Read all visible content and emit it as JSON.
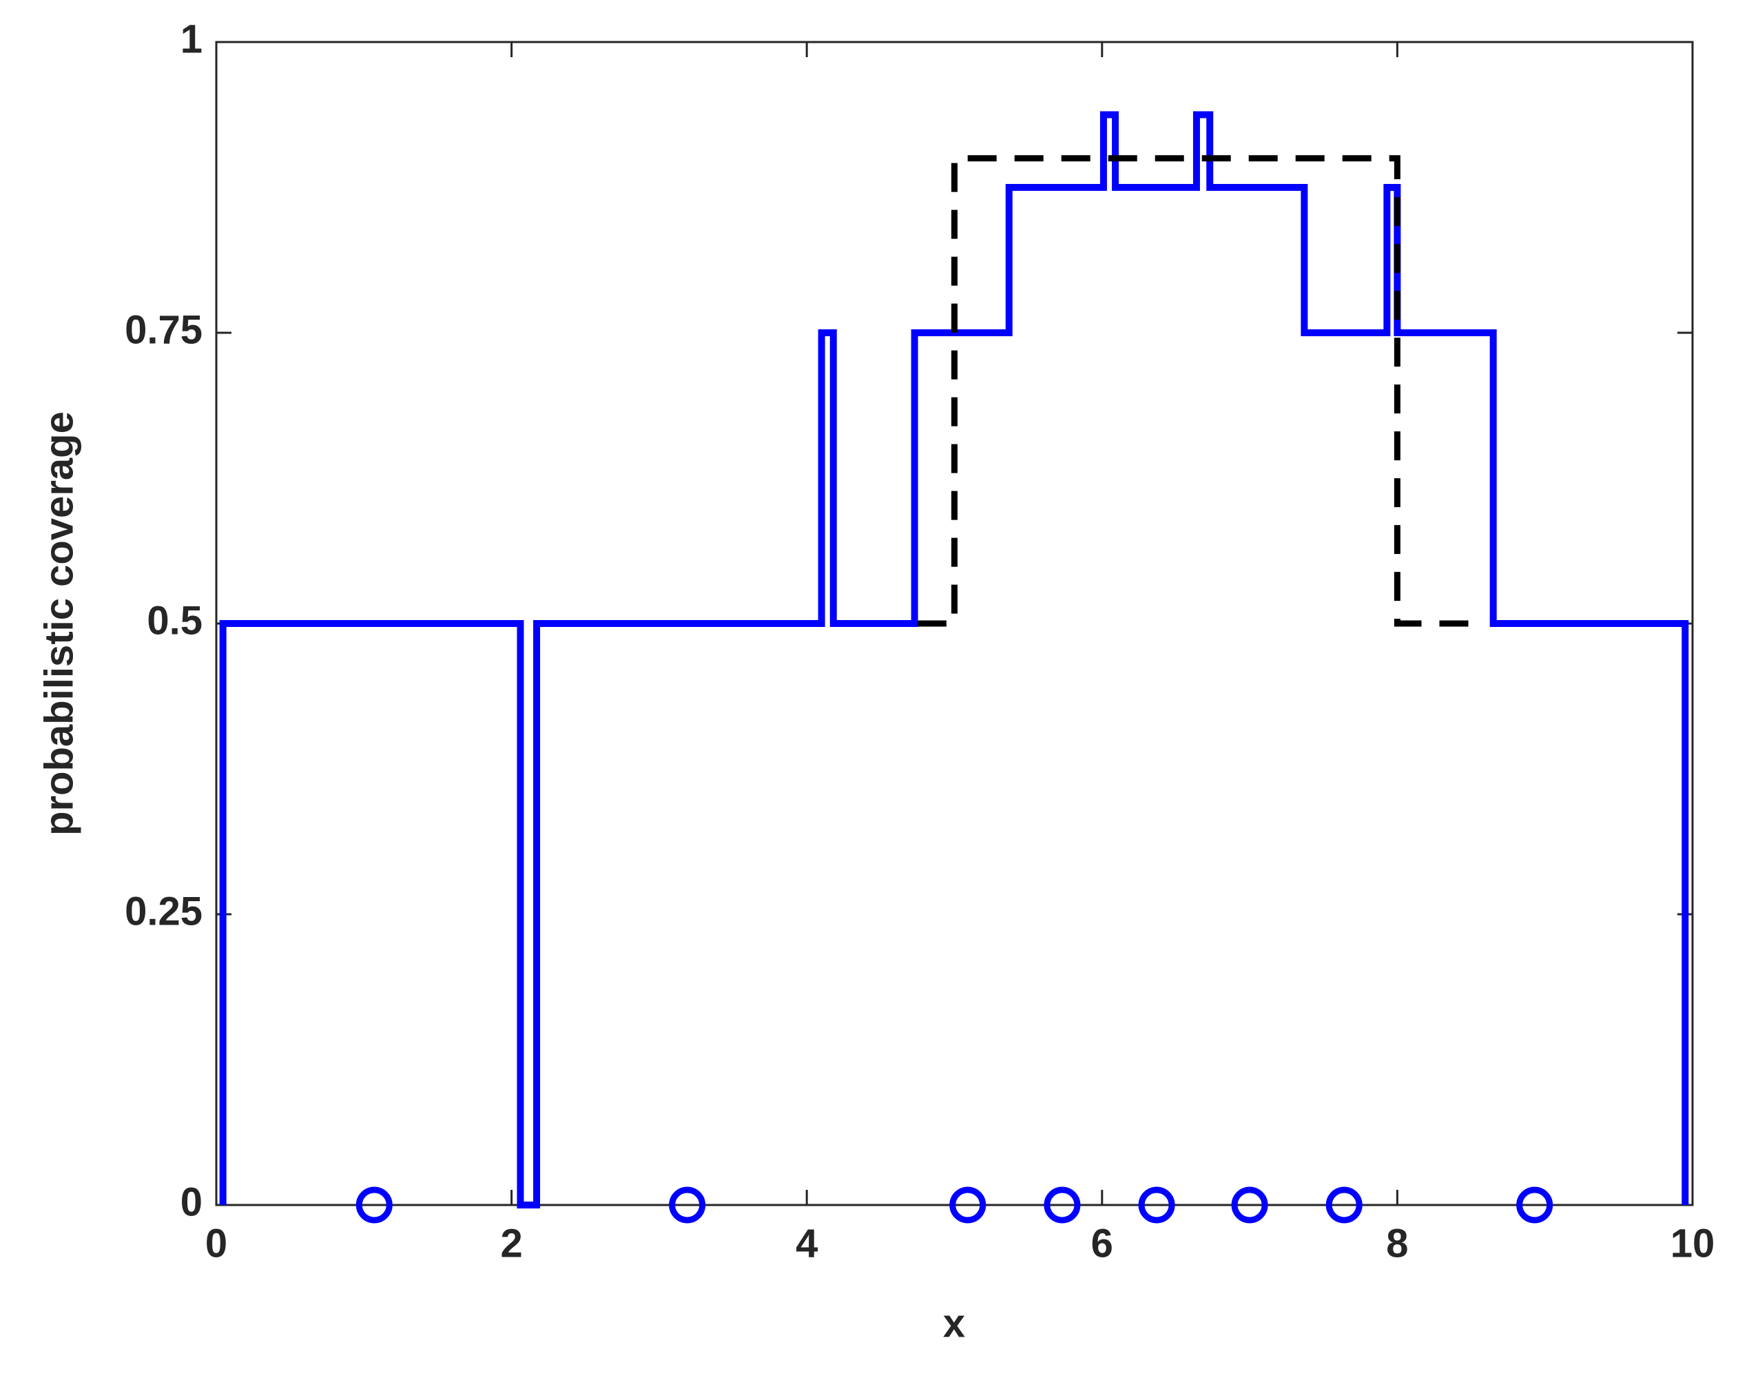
{
  "chart_data": {
    "type": "line",
    "xlabel": "x",
    "ylabel": "probabilistic coverage",
    "xlim": [
      0,
      10
    ],
    "ylim": [
      0,
      1
    ],
    "xticks": [
      0,
      2,
      4,
      6,
      8,
      10
    ],
    "yticks": [
      0,
      0.25,
      0.5,
      0.75,
      1
    ],
    "grid": false,
    "series": [
      {
        "color": "#0000ff",
        "style": "solid",
        "marker": "none",
        "x": [
          0.045,
          0.045,
          2.06,
          2.06,
          2.17,
          2.17,
          4.1,
          4.1,
          4.18,
          4.18,
          4.73,
          4.73,
          5.37,
          5.37,
          6.01,
          6.01,
          6.09,
          6.09,
          6.64,
          6.64,
          6.73,
          6.73,
          7.37,
          7.37,
          7.93,
          7.93,
          8.0,
          8.0,
          8.65,
          8.65,
          9.95,
          9.95
        ],
        "values": [
          0,
          0.5,
          0.5,
          0,
          0,
          0.5,
          0.5,
          0.75,
          0.75,
          0.5,
          0.5,
          0.75,
          0.75,
          0.875,
          0.875,
          0.9375,
          0.9375,
          0.875,
          0.875,
          0.9375,
          0.9375,
          0.875,
          0.875,
          0.75,
          0.75,
          0.875,
          0.875,
          0.75,
          0.75,
          0.5,
          0.5,
          0
        ]
      },
      {
        "color": "#000000",
        "style": "dashed",
        "marker": "none",
        "x": [
          4.75,
          5.0,
          5.0,
          8.0,
          8.0,
          8.6
        ],
        "values": [
          0.5,
          0.5,
          0.9,
          0.9,
          0.5,
          0.5
        ]
      },
      {
        "color": "#0000ff",
        "style": "none",
        "marker": "circle",
        "x": [
          1.07,
          3.19,
          5.09,
          5.73,
          6.37,
          7.0,
          7.64,
          8.93
        ],
        "values": [
          0,
          0,
          0,
          0,
          0,
          0,
          0,
          0
        ]
      }
    ]
  }
}
